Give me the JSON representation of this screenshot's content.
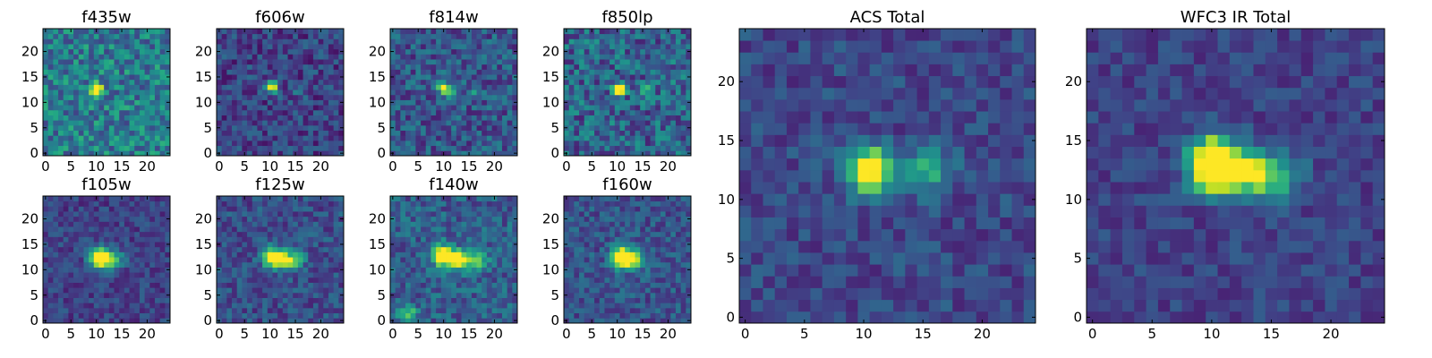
{
  "colormap": "viridis",
  "chart_data": [
    {
      "type": "heatmap",
      "title": "f435w",
      "xticks": [
        0,
        5,
        10,
        15,
        20
      ],
      "yticks": [
        0,
        5,
        10,
        15,
        20
      ],
      "xlim": [
        -0.5,
        24.5
      ],
      "ylim": [
        -0.5,
        24.5
      ],
      "grid_size": [
        25,
        25
      ],
      "peak": [
        10,
        12.5
      ],
      "peak_value": 1.0,
      "features": [],
      "background_level": 0.42,
      "noise_level": 0.22
    },
    {
      "type": "heatmap",
      "title": "f606w",
      "xticks": [
        0,
        5,
        10,
        15,
        20
      ],
      "yticks": [
        0,
        5,
        10,
        15,
        20
      ],
      "xlim": [
        -0.5,
        24.5
      ],
      "ylim": [
        -0.5,
        24.5
      ],
      "grid_size": [
        25,
        25
      ],
      "peak": [
        10.5,
        13
      ],
      "peak_value": 1.0,
      "features": [
        [
          16,
          12,
          0.3
        ]
      ],
      "background_level": 0.2,
      "noise_level": 0.16
    },
    {
      "type": "heatmap",
      "title": "f814w",
      "xticks": [
        0,
        5,
        10,
        15,
        20
      ],
      "yticks": [
        0,
        5,
        10,
        15,
        20
      ],
      "xlim": [
        -0.5,
        24.5
      ],
      "ylim": [
        -0.5,
        24.5
      ],
      "grid_size": [
        25,
        25
      ],
      "peak": [
        10,
        13
      ],
      "peak_value": 1.0,
      "features": [
        [
          11,
          12,
          0.45
        ],
        [
          16,
          12,
          0.3
        ]
      ],
      "background_level": 0.27,
      "noise_level": 0.18
    },
    {
      "type": "heatmap",
      "title": "f850lp",
      "xticks": [
        0,
        5,
        10,
        15,
        20
      ],
      "yticks": [
        0,
        5,
        10,
        15,
        20
      ],
      "xlim": [
        -0.5,
        24.5
      ],
      "ylim": [
        -0.5,
        24.5
      ],
      "grid_size": [
        25,
        25
      ],
      "peak": [
        10.5,
        12.5
      ],
      "peak_value": 1.0,
      "features": [
        [
          16,
          12,
          0.35
        ]
      ],
      "background_level": 0.32,
      "noise_level": 0.22
    },
    {
      "type": "heatmap",
      "title": "f105w",
      "xticks": [
        0,
        5,
        10,
        15,
        20
      ],
      "yticks": [
        0,
        5,
        10,
        15,
        20
      ],
      "xlim": [
        -0.5,
        24.5
      ],
      "ylim": [
        -0.5,
        24.5
      ],
      "grid_size": [
        25,
        25
      ],
      "peak": [
        10.5,
        12.5
      ],
      "peak_value": 1.0,
      "features": [
        [
          12,
          12,
          0.5
        ],
        [
          14,
          12,
          0.3
        ]
      ],
      "background_level": 0.2,
      "noise_level": 0.12
    },
    {
      "type": "heatmap",
      "title": "f125w",
      "xticks": [
        0,
        5,
        10,
        15,
        20
      ],
      "yticks": [
        0,
        5,
        10,
        15,
        20
      ],
      "xlim": [
        -0.5,
        24.5
      ],
      "ylim": [
        -0.5,
        24.5
      ],
      "grid_size": [
        25,
        25
      ],
      "peak": [
        10.5,
        12.5
      ],
      "peak_value": 1.0,
      "features": [
        [
          13,
          12,
          0.5
        ],
        [
          15,
          12,
          0.35
        ]
      ],
      "background_level": 0.24,
      "noise_level": 0.14
    },
    {
      "type": "heatmap",
      "title": "f140w",
      "xticks": [
        0,
        5,
        10,
        15,
        20
      ],
      "yticks": [
        0,
        5,
        10,
        15,
        20
      ],
      "xlim": [
        -0.5,
        24.5
      ],
      "ylim": [
        -0.5,
        24.5
      ],
      "grid_size": [
        25,
        25
      ],
      "peak": [
        9.5,
        13
      ],
      "peak_value": 1.0,
      "features": [
        [
          12,
          12,
          0.6
        ],
        [
          14,
          12,
          0.55
        ],
        [
          17,
          12,
          0.45
        ],
        [
          3,
          1,
          0.45
        ]
      ],
      "background_level": 0.3,
      "noise_level": 0.16
    },
    {
      "type": "heatmap",
      "title": "f160w",
      "xticks": [
        0,
        5,
        10,
        15,
        20
      ],
      "yticks": [
        0,
        5,
        10,
        15,
        20
      ],
      "xlim": [
        -0.5,
        24.5
      ],
      "ylim": [
        -0.5,
        24.5
      ],
      "grid_size": [
        25,
        25
      ],
      "peak": [
        10.5,
        12.5
      ],
      "peak_value": 1.0,
      "features": [
        [
          12,
          12,
          0.5
        ],
        [
          14,
          12,
          0.35
        ]
      ],
      "background_level": 0.26,
      "noise_level": 0.14
    },
    {
      "type": "heatmap",
      "title": "ACS Total",
      "xticks": [
        0,
        5,
        10,
        15,
        20
      ],
      "yticks": [
        0,
        5,
        10,
        15,
        20
      ],
      "xlim": [
        -0.5,
        24.5
      ],
      "ylim": [
        -0.5,
        24.5
      ],
      "grid_size": [
        25,
        25
      ],
      "peak": [
        10.5,
        12.5
      ],
      "peak_value": 1.0,
      "features": [
        [
          15.5,
          12.5,
          0.4
        ]
      ],
      "background_level": 0.22,
      "noise_level": 0.12
    },
    {
      "type": "heatmap",
      "title": "WFC3 IR Total",
      "xticks": [
        0,
        5,
        10,
        15,
        20
      ],
      "yticks": [
        0,
        5,
        10,
        15,
        20
      ],
      "xlim": [
        -0.5,
        24.5
      ],
      "ylim": [
        -0.5,
        24.5
      ],
      "grid_size": [
        25,
        25
      ],
      "peak": [
        10,
        12.5
      ],
      "peak_value": 1.0,
      "features": [
        [
          12,
          12.5,
          0.7
        ],
        [
          14,
          12,
          0.45
        ],
        [
          16,
          12,
          0.35
        ],
        [
          10,
          14,
          0.5
        ]
      ],
      "background_level": 0.2,
      "noise_level": 0.1
    }
  ]
}
